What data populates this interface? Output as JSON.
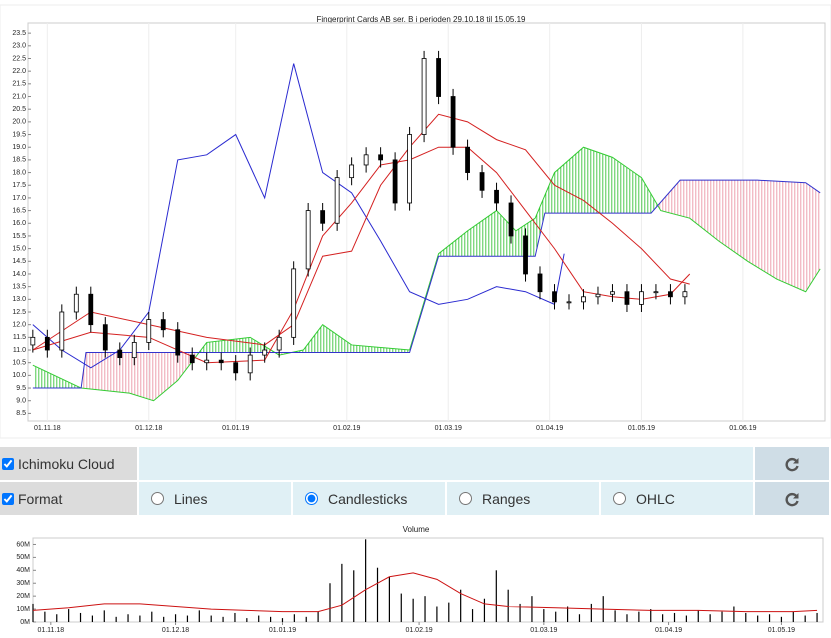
{
  "chart_data": [
    {
      "type": "candlestick",
      "title": "Fingerprint Cards AB ser. B i perioden 29.10.18 til 15.05.19",
      "xlim": [
        -1,
        164
      ],
      "xticks": [
        {
          "value": 3,
          "label": "01.11.18"
        },
        {
          "value": 24,
          "label": "01.12.18"
        },
        {
          "value": 42,
          "label": "01.01.19"
        },
        {
          "value": 65,
          "label": "01.02.19"
        },
        {
          "value": 86,
          "label": "01.03.19"
        },
        {
          "value": 107,
          "label": "01.04.19"
        },
        {
          "value": 126,
          "label": "01.05.19"
        },
        {
          "value": 147,
          "label": "01.06.19"
        }
      ],
      "ylim": [
        8.2,
        23.9
      ],
      "yticks": [
        8.5,
        {
          "value": 9,
          "label": "9.0"
        },
        9.5,
        {
          "value": 10,
          "label": "10.0"
        },
        10.5,
        {
          "value": 11,
          "label": "11.0"
        },
        11.5,
        {
          "value": 12,
          "label": "12.0"
        },
        12.5,
        {
          "value": 13,
          "label": "13.0"
        },
        13.5,
        {
          "value": 14,
          "label": "14.0"
        },
        14.5,
        {
          "value": 15,
          "label": "15.0"
        },
        15.5,
        {
          "value": 16,
          "label": "16.0"
        },
        16.5,
        {
          "value": 17,
          "label": "17.0"
        },
        17.5,
        {
          "value": 18,
          "label": "18.0"
        },
        18.5,
        {
          "value": 19,
          "label": "19.0"
        },
        19.5,
        {
          "value": 20,
          "label": "20.0"
        },
        20.5,
        {
          "value": 21,
          "label": "21.0"
        },
        21.5,
        {
          "value": 22,
          "label": "22.0"
        },
        22.5,
        {
          "value": 23,
          "label": "23.0"
        },
        23.5
      ],
      "grid": true,
      "color": "#000000",
      "x": [
        0,
        3,
        6,
        9,
        12,
        15,
        18,
        21,
        24,
        27,
        30,
        33,
        36,
        39,
        42,
        45,
        48,
        51,
        54,
        57,
        60,
        63,
        66,
        69,
        72,
        75,
        78,
        81,
        84,
        87,
        90,
        93,
        96,
        99,
        102,
        105,
        108,
        111,
        114,
        117,
        120,
        123,
        126,
        129,
        132,
        135
      ],
      "open": [
        11.2,
        11.5,
        11.0,
        12.5,
        13.2,
        12.0,
        11.0,
        10.7,
        11.3,
        12.2,
        11.8,
        10.8,
        10.5,
        10.6,
        10.5,
        10.1,
        10.8,
        11.0,
        11.5,
        14.2,
        16.5,
        16.0,
        17.8,
        18.3,
        18.7,
        18.5,
        16.8,
        19.5,
        22.5,
        21.0,
        19.0,
        18.0,
        17.3,
        16.8,
        15.5,
        14.0,
        13.3,
        12.9,
        12.9,
        13.1,
        13.2,
        13.3,
        12.8,
        13.3,
        13.3,
        13.1
      ],
      "high": [
        11.8,
        11.8,
        12.8,
        13.5,
        13.5,
        12.3,
        11.3,
        11.6,
        12.5,
        12.5,
        12.1,
        11.1,
        10.9,
        10.9,
        10.8,
        11.1,
        11.3,
        11.8,
        14.5,
        16.8,
        16.8,
        18.1,
        18.6,
        19.0,
        19.0,
        18.8,
        19.8,
        22.8,
        22.8,
        21.3,
        19.3,
        18.3,
        17.6,
        17.1,
        15.8,
        14.3,
        13.6,
        13.2,
        13.4,
        13.5,
        13.6,
        13.6,
        13.6,
        13.6,
        13.6,
        13.6
      ],
      "low": [
        10.9,
        10.7,
        10.7,
        12.2,
        11.7,
        10.7,
        10.4,
        10.4,
        11.0,
        11.5,
        10.5,
        10.2,
        10.2,
        10.2,
        9.8,
        9.8,
        10.5,
        10.7,
        11.2,
        13.9,
        15.7,
        15.7,
        17.5,
        18.0,
        18.2,
        16.5,
        16.5,
        19.2,
        20.7,
        18.7,
        17.7,
        17.0,
        16.5,
        15.2,
        13.7,
        13.0,
        12.6,
        12.6,
        12.6,
        12.8,
        12.9,
        12.5,
        12.5,
        13.0,
        12.8,
        12.8
      ],
      "close": [
        11.5,
        11.0,
        12.5,
        13.2,
        12.0,
        11.0,
        10.7,
        11.3,
        12.2,
        11.8,
        10.8,
        10.5,
        10.6,
        10.5,
        10.1,
        10.8,
        11.0,
        11.5,
        14.2,
        16.5,
        16.0,
        17.8,
        18.3,
        18.7,
        18.5,
        16.8,
        19.5,
        22.5,
        21.0,
        19.0,
        18.0,
        17.3,
        16.8,
        15.5,
        14.0,
        13.3,
        12.9,
        12.9,
        13.1,
        13.2,
        13.3,
        12.8,
        13.3,
        13.3,
        13.1,
        13.3
      ],
      "cloud": {
        "a": {
          "color": "#33cc33",
          "x": [
            0,
            10,
            20,
            25,
            30,
            36,
            45,
            51,
            56,
            60,
            66,
            78,
            84,
            90,
            96,
            100,
            104,
            108,
            114,
            120,
            126,
            130,
            136,
            142,
            148,
            154,
            160,
            163
          ],
          "values": [
            10.4,
            9.5,
            9.3,
            9.0,
            9.8,
            11.3,
            11.5,
            10.8,
            11.0,
            12.0,
            11.2,
            11.0,
            14.8,
            15.7,
            16.5,
            15.7,
            16.2,
            18.0,
            19.0,
            18.6,
            17.8,
            16.5,
            16.2,
            15.3,
            14.5,
            13.8,
            13.3,
            14.2
          ]
        },
        "b": {
          "color": "#3333cc",
          "x": [
            0,
            10,
            11,
            78,
            84,
            104,
            106,
            128,
            134,
            150,
            160,
            163
          ],
          "values": [
            9.5,
            9.5,
            10.9,
            10.9,
            14.7,
            14.7,
            16.4,
            16.4,
            17.7,
            17.7,
            17.6,
            17.2
          ]
        },
        "a_above_color": "#22bb22",
        "b_above_color": "#e8889a"
      },
      "lines": [
        {
          "color": "#2a2ad0",
          "x": [
            0,
            6,
            12,
            18,
            24,
            30,
            36,
            42,
            48,
            54,
            60,
            66,
            72,
            78,
            84,
            90,
            96,
            102,
            108,
            110
          ],
          "values": [
            12.0,
            11.0,
            10.3,
            11.0,
            12.5,
            18.5,
            18.7,
            19.5,
            17.0,
            22.3,
            18.0,
            17.2,
            15.3,
            13.3,
            12.8,
            13.0,
            13.5,
            13.3,
            12.8,
            14.8
          ]
        },
        {
          "color": "#d42020",
          "x": [
            0,
            12,
            24,
            36,
            48,
            54,
            60,
            66,
            72,
            78,
            84,
            90,
            96,
            102,
            108,
            114,
            120,
            126,
            132,
            136
          ],
          "values": [
            11.0,
            12.5,
            12.0,
            11.5,
            11.2,
            12.0,
            14.7,
            14.9,
            17.5,
            19.0,
            20.3,
            20.0,
            19.3,
            18.9,
            17.5,
            16.9,
            16.0,
            15.0,
            13.8,
            13.6
          ]
        },
        {
          "color": "#d42020",
          "x": [
            0,
            12,
            24,
            36,
            48,
            54,
            60,
            66,
            72,
            78,
            84,
            90,
            96,
            102,
            108,
            114,
            120,
            126,
            132,
            136
          ],
          "values": [
            11.0,
            11.7,
            11.5,
            10.5,
            10.6,
            12.6,
            15.5,
            16.8,
            18.3,
            18.5,
            19.0,
            19.0,
            18.0,
            16.5,
            15.0,
            13.3,
            13.1,
            13.0,
            13.2,
            14.0
          ]
        }
      ]
    },
    {
      "type": "bar",
      "title": "Volume",
      "xlim": [
        0,
        133
      ],
      "xticks": [
        {
          "value": 3,
          "label": "01.11.18"
        },
        {
          "value": 24,
          "label": "01.12.18"
        },
        {
          "value": 42,
          "label": "01.01.19"
        },
        {
          "value": 65,
          "label": "01.02.19"
        },
        {
          "value": 86,
          "label": "01.03.19"
        },
        {
          "value": 107,
          "label": "01.04.19"
        },
        {
          "value": 126,
          "label": "01.05.19"
        }
      ],
      "ylim": [
        0,
        65
      ],
      "yticks": [
        {
          "value": 0,
          "label": "0M"
        },
        {
          "value": 10,
          "label": "10M"
        },
        {
          "value": 20,
          "label": "20M"
        },
        {
          "value": 30,
          "label": "30M"
        },
        {
          "value": 40,
          "label": "40M"
        },
        {
          "value": 50,
          "label": "50M"
        },
        {
          "value": 60,
          "label": "60M"
        }
      ],
      "color": "#000000",
      "x": [
        0,
        2,
        4,
        6,
        8,
        10,
        12,
        14,
        16,
        18,
        20,
        22,
        24,
        26,
        28,
        30,
        32,
        34,
        36,
        38,
        40,
        42,
        44,
        46,
        48,
        50,
        52,
        54,
        56,
        58,
        60,
        62,
        64,
        66,
        68,
        70,
        72,
        74,
        76,
        78,
        80,
        82,
        84,
        86,
        88,
        90,
        92,
        94,
        96,
        98,
        100,
        102,
        104,
        106,
        108,
        110,
        112,
        114,
        116,
        118,
        120,
        122,
        124,
        126,
        128,
        130,
        132
      ],
      "values": [
        14,
        8,
        6,
        10,
        7,
        5,
        9,
        4,
        6,
        5,
        8,
        4,
        6,
        5,
        9,
        5,
        4,
        7,
        3,
        5,
        4,
        3,
        6,
        4,
        8,
        30,
        45,
        40,
        64,
        42,
        35,
        22,
        18,
        20,
        12,
        15,
        25,
        10,
        18,
        40,
        25,
        14,
        20,
        10,
        8,
        12,
        6,
        14,
        20,
        9,
        6,
        8,
        10,
        6,
        7,
        5,
        9,
        6,
        8,
        12,
        7,
        5,
        6,
        4,
        8,
        5,
        7
      ],
      "line": {
        "color": "#cc1111",
        "x": [
          0,
          6,
          12,
          18,
          24,
          30,
          36,
          42,
          48,
          52,
          56,
          60,
          64,
          68,
          72,
          76,
          80,
          88,
          96,
          104,
          112,
          120,
          128,
          132
        ],
        "values": [
          9,
          11,
          14,
          14,
          12,
          10,
          9,
          8,
          8,
          13,
          25,
          35,
          38,
          33,
          22,
          14,
          12,
          11,
          10,
          9,
          9,
          8,
          8,
          9
        ]
      }
    }
  ],
  "controls": {
    "cloud_toggle": {
      "label": "Ichimoku Cloud",
      "checked": true
    },
    "format_toggle": {
      "label": "Format",
      "checked": true
    },
    "formats": [
      "Lines",
      "Candlesticks",
      "Ranges",
      "OHLC"
    ],
    "selected": 1
  }
}
